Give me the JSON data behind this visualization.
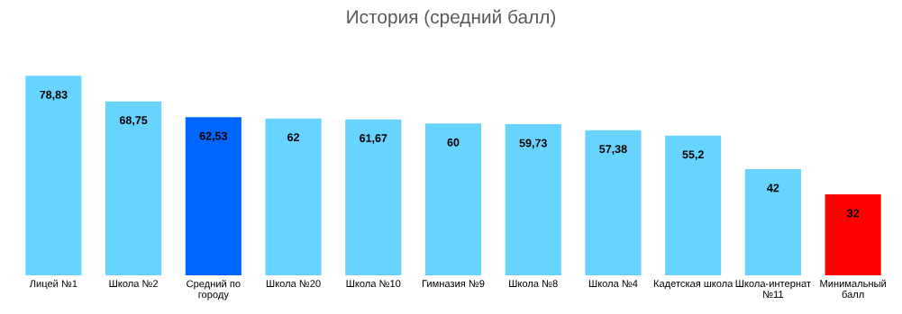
{
  "chart_data": {
    "type": "bar",
    "title": "История (средний балл)",
    "categories": [
      "Лицей №1",
      "Школа №2",
      "Средний по\nгороду",
      "Школа №20",
      "Школа №10",
      "Гимназия №9",
      "Школа №8",
      "Школа №4",
      "Кадетская школа",
      "Школа-интернат\n№11",
      "Минимальный\nбалл"
    ],
    "values": [
      78.83,
      68.75,
      62.53,
      62,
      61.67,
      60,
      59.73,
      57.38,
      55.2,
      42,
      32
    ],
    "value_labels": [
      "78,83",
      "68,75",
      "62,53",
      "62",
      "61,67",
      "60",
      "59,73",
      "57,38",
      "55,2",
      "42",
      "32"
    ],
    "colors": [
      "#66d4ff",
      "#66d4ff",
      "#0066ff",
      "#66d4ff",
      "#66d4ff",
      "#66d4ff",
      "#66d4ff",
      "#66d4ff",
      "#66d4ff",
      "#66d4ff",
      "#ff0000"
    ],
    "grid": false,
    "legend": false
  }
}
